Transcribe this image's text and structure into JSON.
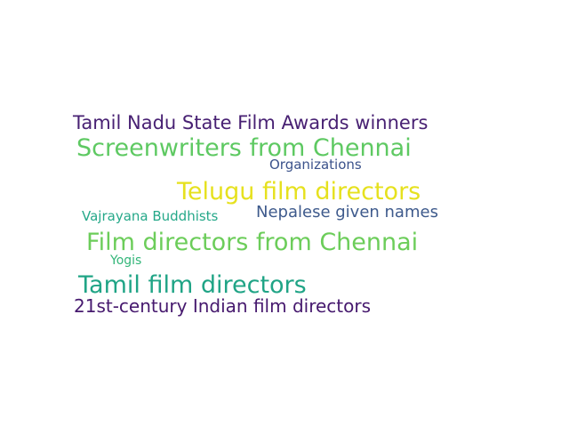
{
  "word_cloud": {
    "words": [
      {
        "text": "Tamil Nadu State Film Awards winners",
        "color": "#482173"
      },
      {
        "text": "Screenwriters from Chennai",
        "color": "#5ec962"
      },
      {
        "text": "Organizations",
        "color": "#3b528b"
      },
      {
        "text": "Telugu film directors",
        "color": "#e6e11e"
      },
      {
        "text": "Nepalese given names",
        "color": "#3e5a8c"
      },
      {
        "text": "Vajrayana Buddhists",
        "color": "#25a889"
      },
      {
        "text": "Film directors from Chennai",
        "color": "#6ccd5a"
      },
      {
        "text": "Yogis",
        "color": "#33b679"
      },
      {
        "text": "Tamil film directors",
        "color": "#20a486"
      },
      {
        "text": "21st-century Indian film directors",
        "color": "#46196e"
      }
    ]
  }
}
